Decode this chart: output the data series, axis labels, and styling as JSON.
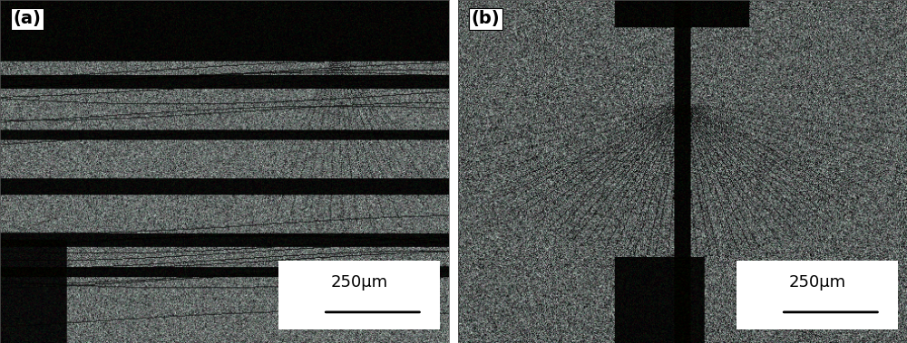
{
  "panel_a_label": "(a)",
  "panel_b_label": "(b)",
  "scale_bar_text": "250μm",
  "label_fontsize": 14,
  "scale_fontsize": 13,
  "background_color": "#ffffff",
  "panel_bg": "#1a1a1a",
  "scale_box_color": "#ffffff",
  "scale_bar_color": "#000000",
  "label_box_color": "#ffffff",
  "figsize": [
    10.0,
    3.79
  ],
  "dpi": 100
}
